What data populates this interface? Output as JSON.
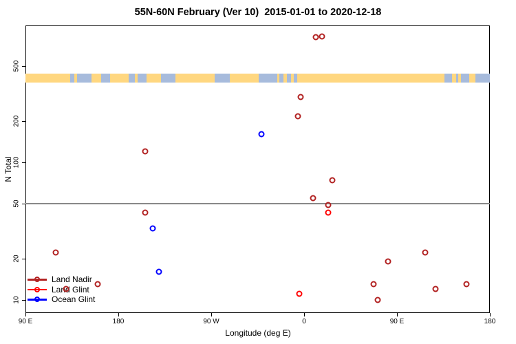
{
  "title": "55N-60N February (Ver 10)  2015-01-01 to 2020-12-18",
  "colors": {
    "land_nadir": "#B22222",
    "land_glint": "#FF0000",
    "ocean_glint": "#0000FF",
    "strip_land": "#FFD780",
    "strip_ocean": "#A7BBDC",
    "ref_line": "#888888",
    "axis": "#000000"
  },
  "legend": {
    "items": [
      {
        "label": "Land Nadir",
        "color_key": "land_nadir"
      },
      {
        "label": "Land Glint",
        "color_key": "land_glint"
      },
      {
        "label": "Ocean Glint",
        "color_key": "ocean_glint"
      }
    ]
  },
  "chart_data": {
    "type": "scatter",
    "title": "55N-60N February (Ver 10)  2015-01-01 to 2020-12-18",
    "xlabel": "Longitude (deg E)",
    "ylabel": "N Total",
    "x_scale": "linear",
    "y_scale": "log",
    "xlim": [
      90,
      540
    ],
    "ylim": [
      8,
      990
    ],
    "grid": "off",
    "legend_position": "bottom-left-inside",
    "x_ticks": [
      {
        "x": 90,
        "label": "90 E"
      },
      {
        "x": 180,
        "label": "180"
      },
      {
        "x": 270,
        "label": "90 W"
      },
      {
        "x": 360,
        "label": "0"
      },
      {
        "x": 450,
        "label": "90 E"
      },
      {
        "x": 540,
        "label": "180"
      }
    ],
    "y_ticks": [
      {
        "y": 10,
        "label": "10"
      },
      {
        "y": 20,
        "label": "20"
      },
      {
        "y": 50,
        "label": "50"
      },
      {
        "y": 100,
        "label": "100"
      },
      {
        "y": 200,
        "label": "200"
      },
      {
        "y": 500,
        "label": "500"
      }
    ],
    "reference_line_y": 50,
    "series": [
      {
        "name": "Land Nadir",
        "color_key": "land_nadir",
        "marker": "open-circle",
        "points": [
          [
            371.5,
            810
          ],
          [
            377,
            820
          ],
          [
            356.5,
            300
          ],
          [
            354,
            215
          ],
          [
            206,
            120
          ],
          [
            387,
            74
          ],
          [
            368.5,
            55
          ],
          [
            383.5,
            49
          ],
          [
            206,
            43
          ],
          [
            119.5,
            22
          ],
          [
            477.5,
            22
          ],
          [
            441.5,
            19
          ],
          [
            160,
            13
          ],
          [
            427.5,
            13
          ],
          [
            517.5,
            13
          ],
          [
            129.5,
            12
          ],
          [
            487.5,
            12
          ],
          [
            431.5,
            10
          ]
        ]
      },
      {
        "name": "Land Glint",
        "color_key": "land_glint",
        "marker": "open-circle",
        "points": [
          [
            383.5,
            43
          ],
          [
            355,
            11
          ]
        ]
      },
      {
        "name": "Ocean Glint",
        "color_key": "ocean_glint",
        "marker": "open-circle",
        "points": [
          [
            318.7,
            160
          ],
          [
            213.5,
            33
          ],
          [
            219,
            16
          ]
        ]
      }
    ],
    "map_strip": {
      "description": "land-ocean mask band across 55N-60N",
      "n_range": [
        382,
        440
      ],
      "ocean_span": [
        90,
        540
      ],
      "land_segments": [
        [
          90,
          133.5
        ],
        [
          137,
          140
        ],
        [
          154,
          163
        ],
        [
          172,
          190
        ],
        [
          196,
          198.5
        ],
        [
          207,
          221
        ],
        [
          235,
          273
        ],
        [
          288,
          316
        ],
        [
          334,
          336
        ],
        [
          340,
          343
        ],
        [
          347,
          350
        ],
        [
          353,
          496
        ],
        [
          503,
          507
        ],
        [
          509,
          512
        ],
        [
          520,
          526
        ]
      ]
    }
  }
}
